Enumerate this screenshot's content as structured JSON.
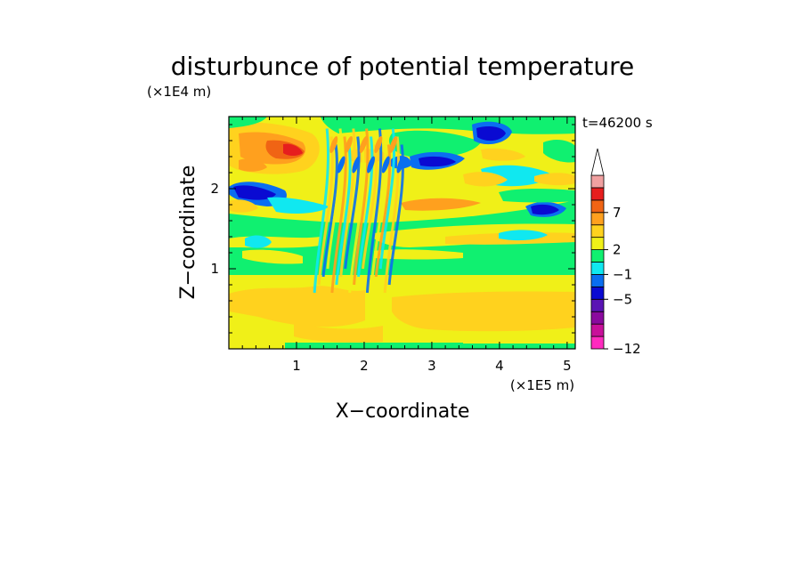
{
  "chart_data": {
    "type": "heatmap",
    "title": "disturbunce of potential temperature",
    "time_label": "t=46200 s",
    "xlabel": "X−coordinate",
    "ylabel": "Z−coordinate",
    "x_unit": "(×1E5 m)",
    "y_unit": "(×1E4 m)",
    "xlim": [
      0,
      5.12
    ],
    "ylim": [
      0,
      2.9
    ],
    "x_ticks": [
      1,
      2,
      3,
      4,
      5
    ],
    "x_tick_labels": [
      "1",
      "2",
      "3",
      "4",
      "5"
    ],
    "y_ticks": [
      1,
      2
    ],
    "y_tick_labels": [
      "1",
      "2"
    ],
    "colorbar": {
      "levels": [
        "-12",
        "",
        "",
        "",
        "-5",
        "",
        "-1",
        "",
        "2",
        "",
        "",
        "7",
        "",
        ""
      ],
      "colors": [
        "#ff2bbf",
        "#c8109a",
        "#8a0a9e",
        "#5a14b4",
        "#0a0ad2",
        "#0a6ef0",
        "#10e8f0",
        "#10f070",
        "#f0f018",
        "#ffd21e",
        "#ffa01e",
        "#f06414",
        "#e61e1e",
        "#f0a0a0"
      ],
      "labels": [
        "7",
        "2",
        "−1",
        "−5",
        "−12"
      ],
      "extend": "max"
    },
    "bands": [
      {
        "z_from": 0.0,
        "z_to": 0.08,
        "value": "green"
      },
      {
        "z_from": 0.08,
        "z_to": 0.9,
        "value": "yellow/orange"
      },
      {
        "z_from": 0.9,
        "z_to": 1.55,
        "value": "green"
      },
      {
        "z_from": 1.55,
        "z_to": 2.1,
        "value": "mixed"
      },
      {
        "z_from": 2.1,
        "z_to": 2.9,
        "value": "mixed, strong anomalies"
      }
    ]
  }
}
